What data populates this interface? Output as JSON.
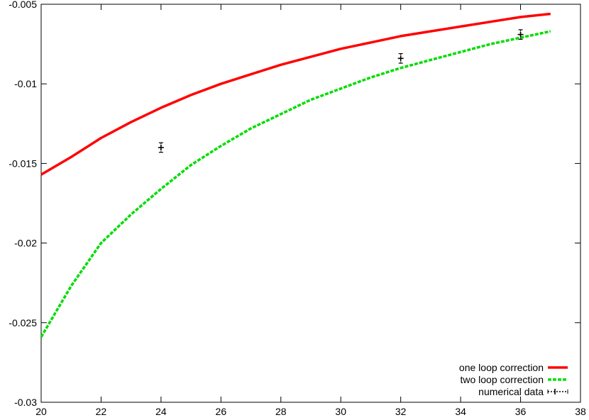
{
  "chart_data": {
    "type": "line",
    "title": "",
    "xlabel": "",
    "ylabel": "",
    "xlim": [
      20,
      38
    ],
    "ylim": [
      -0.03,
      -0.005
    ],
    "x_ticks": [
      20,
      22,
      24,
      26,
      28,
      30,
      32,
      34,
      36,
      38
    ],
    "y_ticks": [
      -0.03,
      -0.025,
      -0.02,
      -0.015,
      -0.01,
      -0.005
    ],
    "x_tick_labels": [
      "20",
      "22",
      "24",
      "26",
      "28",
      "30",
      "32",
      "34",
      "36",
      "38"
    ],
    "y_tick_labels": [
      "-0.03",
      "-0.025",
      "-0.02",
      "-0.015",
      "-0.01",
      "-0.005"
    ],
    "grid": false,
    "legend_position": "bottom-right",
    "series": [
      {
        "name": "one loop correction",
        "color": "#ff0000",
        "style": "solid",
        "x": [
          20,
          21,
          22,
          23,
          24,
          25,
          26,
          27,
          28,
          29,
          30,
          31,
          32,
          33,
          34,
          35,
          36,
          37
        ],
        "y": [
          -0.0157,
          -0.0146,
          -0.0134,
          -0.0124,
          -0.0115,
          -0.0107,
          -0.01,
          -0.0094,
          -0.0088,
          -0.0083,
          -0.0078,
          -0.0074,
          -0.007,
          -0.0067,
          -0.0064,
          -0.0061,
          -0.0058,
          -0.0056
        ]
      },
      {
        "name": "two loop correction",
        "color": "#00dd00",
        "style": "dashed",
        "x": [
          20,
          21,
          22,
          23,
          24,
          25,
          26,
          27,
          28,
          29,
          30,
          31,
          32,
          33,
          34,
          35,
          36,
          37
        ],
        "y": [
          -0.0259,
          -0.0227,
          -0.02,
          -0.0182,
          -0.0166,
          -0.0151,
          -0.0139,
          -0.0128,
          -0.0119,
          -0.011,
          -0.0103,
          -0.0096,
          -0.009,
          -0.0085,
          -0.008,
          -0.0075,
          -0.0071,
          -0.0067
        ]
      },
      {
        "name": "numerical data",
        "color": "#000000",
        "style": "points-errorbars",
        "x": [
          24,
          32,
          36
        ],
        "y": [
          -0.014,
          -0.0084,
          -0.0069
        ],
        "yerr": [
          0.0003,
          0.0003,
          0.0003
        ]
      }
    ]
  }
}
